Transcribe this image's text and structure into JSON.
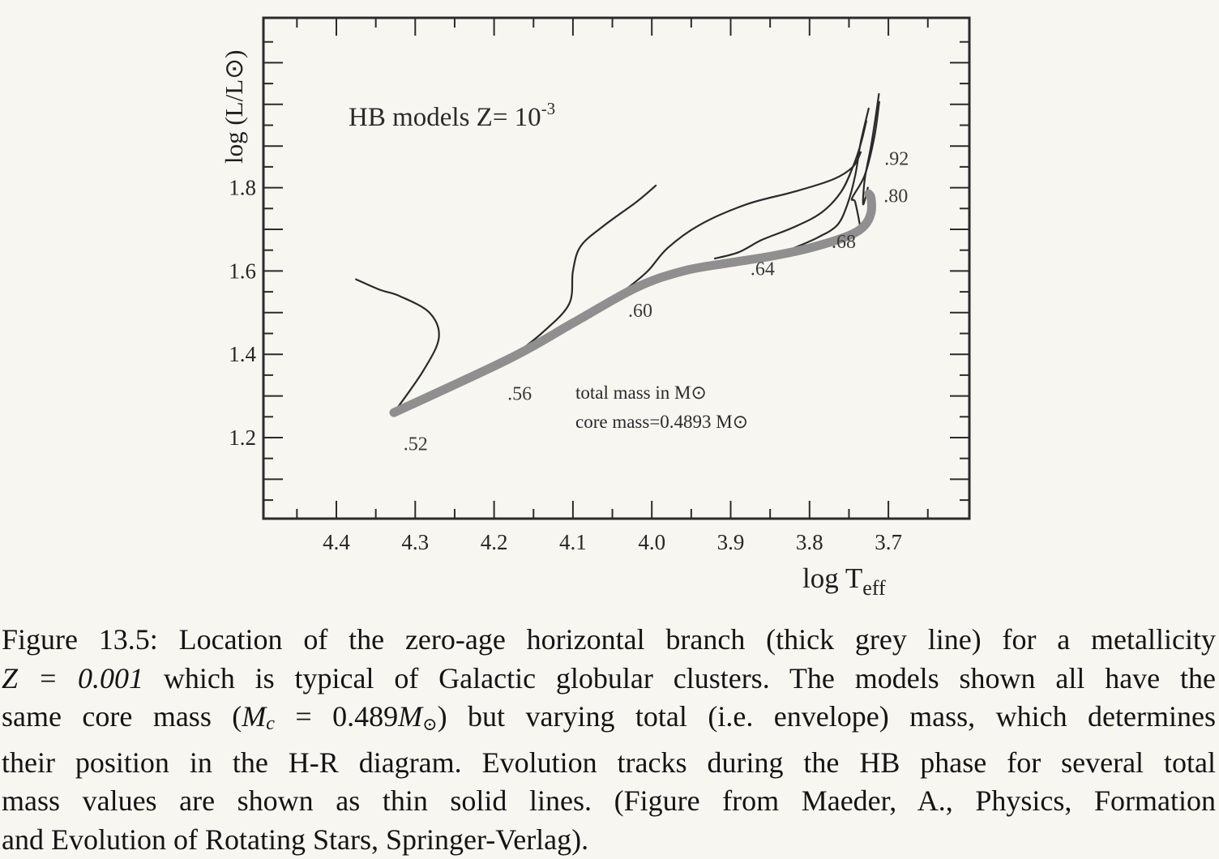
{
  "chart_data": {
    "type": "line",
    "title": "HB models Z= 10-3",
    "title_parts": {
      "text": "HB models  Z= 10",
      "superscript": "-3"
    },
    "xlabel": "log Teff",
    "xlabel_parts": {
      "main": "log T",
      "subscript": "eff"
    },
    "ylabel": "log (L/L⊙)",
    "xlim": [
      4.48,
      3.59
    ],
    "ylim": [
      1.0,
      2.12
    ],
    "x_reversed": true,
    "grid": false,
    "x_ticks": [
      "4.4",
      "4.3",
      "4.2",
      "4.1",
      "4.0",
      "3.9",
      "3.8",
      "3.7"
    ],
    "y_ticks": [
      "1.2",
      "1.4",
      "1.6",
      "1.8"
    ],
    "annotations": {
      "total_mass": "total mass in M⊙",
      "core_mass": "core mass=0.4893 M⊙"
    },
    "zahb": {
      "name": "ZAHB",
      "color": "#8f8f8f",
      "points": [
        [
          4.327,
          1.26
        ],
        [
          4.18,
          1.39
        ],
        [
          4.1,
          1.475
        ],
        [
          4.02,
          1.56
        ],
        [
          3.96,
          1.6
        ],
        [
          3.9,
          1.62
        ],
        [
          3.85,
          1.635
        ],
        [
          3.8,
          1.655
        ],
        [
          3.75,
          1.685
        ],
        [
          3.73,
          1.71
        ],
        [
          3.722,
          1.74
        ],
        [
          3.722,
          1.775
        ],
        [
          3.725,
          1.785
        ]
      ]
    },
    "mass_labels": [
      {
        "label": ".52",
        "x": 4.315,
        "y": 1.17
      },
      {
        "label": ".56",
        "x": 4.183,
        "y": 1.29
      },
      {
        "label": ".60",
        "x": 4.03,
        "y": 1.49
      },
      {
        "label": ".64",
        "x": 3.875,
        "y": 1.59
      },
      {
        "label": ".68",
        "x": 3.772,
        "y": 1.655
      },
      {
        "label": ".80",
        "x": 3.706,
        "y": 1.765
      },
      {
        "label": ".92",
        "x": 3.705,
        "y": 1.855
      }
    ],
    "series": [
      {
        "mass": ".52",
        "points": [
          [
            4.327,
            1.26
          ],
          [
            4.29,
            1.36
          ],
          [
            4.27,
            1.44
          ],
          [
            4.282,
            1.5
          ],
          [
            4.32,
            1.54
          ],
          [
            4.345,
            1.555
          ],
          [
            4.375,
            1.58
          ]
        ]
      },
      {
        "mass": ".56",
        "points": [
          [
            4.18,
            1.39
          ],
          [
            4.14,
            1.45
          ],
          [
            4.105,
            1.52
          ],
          [
            4.1,
            1.6
          ],
          [
            4.09,
            1.66
          ],
          [
            4.06,
            1.71
          ],
          [
            4.02,
            1.765
          ],
          [
            3.995,
            1.805
          ]
        ]
      },
      {
        "mass": ".60",
        "points": [
          [
            4.03,
            1.56
          ],
          [
            4.005,
            1.6
          ],
          [
            3.98,
            1.655
          ],
          [
            3.94,
            1.71
          ],
          [
            3.88,
            1.76
          ],
          [
            3.82,
            1.79
          ],
          [
            3.77,
            1.82
          ],
          [
            3.745,
            1.85
          ],
          [
            3.735,
            1.885
          ]
        ]
      },
      {
        "mass": ".64",
        "points": [
          [
            3.92,
            1.63
          ],
          [
            3.89,
            1.645
          ],
          [
            3.86,
            1.675
          ],
          [
            3.82,
            1.705
          ],
          [
            3.785,
            1.74
          ],
          [
            3.76,
            1.79
          ],
          [
            3.745,
            1.85
          ],
          [
            3.735,
            1.905
          ],
          [
            3.728,
            1.96
          ]
        ]
      },
      {
        "mass": ".68",
        "points": [
          [
            3.82,
            1.655
          ],
          [
            3.79,
            1.68
          ],
          [
            3.765,
            1.71
          ],
          [
            3.752,
            1.76
          ],
          [
            3.742,
            1.83
          ],
          [
            3.735,
            1.91
          ],
          [
            3.725,
            1.99
          ]
        ]
      },
      {
        "mass": ".80",
        "points": [
          [
            3.735,
            1.7
          ],
          [
            3.742,
            1.765
          ],
          [
            3.746,
            1.775
          ],
          [
            3.73,
            1.83
          ],
          [
            3.718,
            1.92
          ],
          [
            3.712,
            2.0
          ],
          [
            3.712,
            2.0
          ]
        ]
      },
      {
        "mass": ".92",
        "points": [
          [
            3.726,
            1.8
          ],
          [
            3.732,
            1.76
          ],
          [
            3.73,
            1.82
          ],
          [
            3.722,
            1.9
          ],
          [
            3.717,
            1.96
          ],
          [
            3.712,
            2.025
          ]
        ]
      }
    ]
  },
  "caption": {
    "label": "Figure 13.5:",
    "lines": [
      "Figure 13.5: Location of the zero-age horizontal branch (thick grey line) for a metallicity",
      "which is typical of Galactic globular clusters. The models shown all have the",
      "same core mass (",
      "but varying total (i.e. envelope) mass, which determines",
      "their position in the H-R diagram. Evolution tracks during the HB phase for several total",
      "mass values are shown as thin solid lines. (Figure from Maeder, A., Physics, Formation",
      "and Evolution of Rotating Stars, Springer-Verlag)."
    ],
    "z_math": "Z = 0.001",
    "mc_math": "Mc = 0.489M⊙)",
    "mc_parts": {
      "m": "M",
      "c_sub": "c",
      "eq": " = 0.489",
      "m2": "M",
      "sun_sub": "⊙",
      "close": ")"
    }
  }
}
